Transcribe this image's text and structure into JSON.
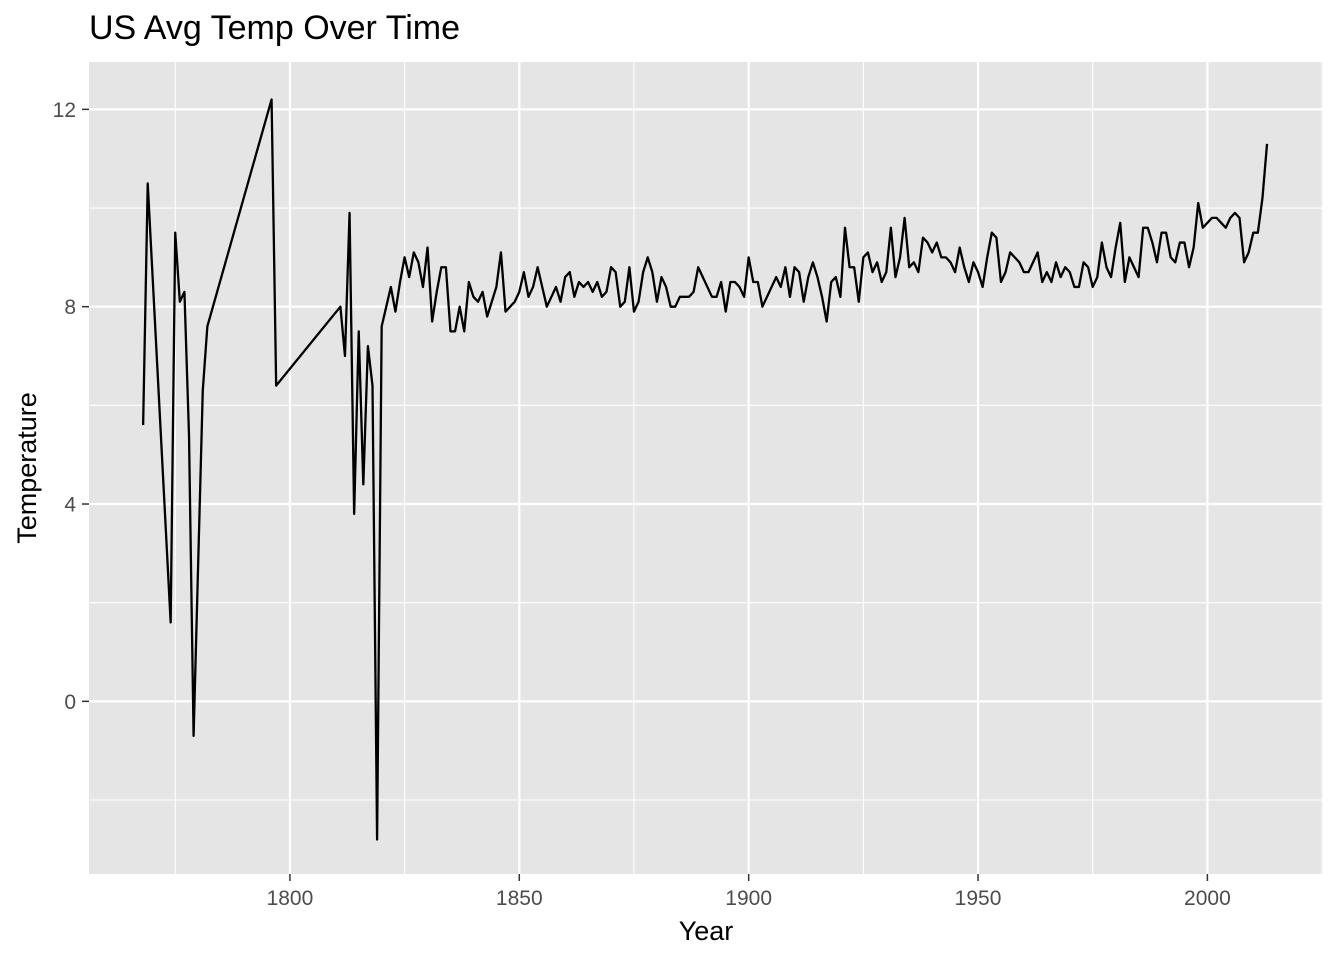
{
  "chart_data": {
    "type": "line",
    "title": "US Avg Temp Over Time",
    "xlabel": "Year",
    "ylabel": "Temperature",
    "xlim": [
      1756.2,
      2025.2
    ],
    "ylim": [
      -3.5,
      12.96
    ],
    "x_ticks": [
      1800,
      1850,
      1900,
      1950,
      2000
    ],
    "y_ticks": [
      0,
      4,
      8,
      12
    ],
    "grid": true,
    "legend": "none",
    "colors": {
      "panel": "#e5e5e5",
      "grid": "#ffffff",
      "line": "#000000",
      "tick_text": "#4d4d4d"
    },
    "series": [
      {
        "x": [
          1768,
          1769,
          1774,
          1775,
          1776,
          1777,
          1778,
          1779,
          1781,
          1782,
          1796,
          1797,
          1811,
          1812,
          1813,
          1814,
          1815,
          1816,
          1817,
          1818,
          1819,
          1820,
          1821,
          1822,
          1823,
          1824,
          1825,
          1826,
          1827,
          1828,
          1829,
          1830,
          1831,
          1832,
          1833,
          1834,
          1835,
          1836,
          1837,
          1838,
          1839,
          1840,
          1841,
          1842,
          1843,
          1844,
          1845,
          1846,
          1847,
          1848,
          1849,
          1850,
          1851,
          1852,
          1853,
          1854,
          1855,
          1856,
          1857,
          1858,
          1859,
          1860,
          1861,
          1862,
          1863,
          1864,
          1865,
          1866,
          1867,
          1868,
          1869,
          1870,
          1871,
          1872,
          1873,
          1874,
          1875,
          1876,
          1877,
          1878,
          1879,
          1880,
          1881,
          1882,
          1883,
          1884,
          1885,
          1886,
          1887,
          1888,
          1889,
          1890,
          1891,
          1892,
          1893,
          1894,
          1895,
          1896,
          1897,
          1898,
          1899,
          1900,
          1901,
          1902,
          1903,
          1904,
          1905,
          1906,
          1907,
          1908,
          1909,
          1910,
          1911,
          1912,
          1913,
          1914,
          1915,
          1916,
          1917,
          1918,
          1919,
          1920,
          1921,
          1922,
          1923,
          1924,
          1925,
          1926,
          1927,
          1928,
          1929,
          1930,
          1931,
          1932,
          1933,
          1934,
          1935,
          1936,
          1937,
          1938,
          1939,
          1940,
          1941,
          1942,
          1943,
          1944,
          1945,
          1946,
          1947,
          1948,
          1949,
          1950,
          1951,
          1952,
          1953,
          1954,
          1955,
          1956,
          1957,
          1958,
          1959,
          1960,
          1961,
          1962,
          1963,
          1964,
          1965,
          1966,
          1967,
          1968,
          1969,
          1970,
          1971,
          1972,
          1973,
          1974,
          1975,
          1976,
          1977,
          1978,
          1979,
          1980,
          1981,
          1982,
          1983,
          1984,
          1985,
          1986,
          1987,
          1988,
          1989,
          1990,
          1991,
          1992,
          1993,
          1994,
          1995,
          1996,
          1997,
          1998,
          1999,
          2000,
          2001,
          2002,
          2003,
          2004,
          2005,
          2006,
          2007,
          2008,
          2009,
          2010,
          2011,
          2012,
          2013
        ],
        "y": [
          5.6,
          10.5,
          1.6,
          9.5,
          8.1,
          8.3,
          5.4,
          -0.7,
          6.3,
          7.6,
          12.2,
          6.4,
          8.0,
          7.0,
          9.9,
          3.8,
          7.5,
          4.4,
          7.2,
          6.4,
          -2.8,
          7.6,
          8.0,
          8.4,
          7.9,
          8.5,
          9.0,
          8.6,
          9.1,
          8.9,
          8.4,
          9.2,
          7.7,
          8.3,
          8.8,
          8.8,
          7.5,
          7.5,
          8.0,
          7.5,
          8.5,
          8.2,
          8.1,
          8.3,
          7.8,
          8.1,
          8.4,
          9.1,
          7.9,
          8.0,
          8.1,
          8.3,
          8.7,
          8.2,
          8.4,
          8.8,
          8.4,
          8.0,
          8.2,
          8.4,
          8.1,
          8.6,
          8.7,
          8.2,
          8.5,
          8.4,
          8.5,
          8.3,
          8.5,
          8.2,
          8.3,
          8.8,
          8.7,
          8.0,
          8.1,
          8.8,
          7.9,
          8.1,
          8.7,
          9.0,
          8.7,
          8.1,
          8.6,
          8.4,
          8.0,
          8.0,
          8.2,
          8.2,
          8.2,
          8.3,
          8.8,
          8.6,
          8.4,
          8.2,
          8.2,
          8.5,
          7.9,
          8.5,
          8.5,
          8.4,
          8.2,
          9.0,
          8.5,
          8.5,
          8.0,
          8.2,
          8.4,
          8.6,
          8.4,
          8.8,
          8.2,
          8.8,
          8.7,
          8.1,
          8.6,
          8.9,
          8.6,
          8.2,
          7.7,
          8.5,
          8.6,
          8.2,
          9.6,
          8.8,
          8.8,
          8.1,
          9.0,
          9.1,
          8.7,
          8.9,
          8.5,
          8.7,
          9.6,
          8.6,
          9.0,
          9.8,
          8.8,
          8.9,
          8.7,
          9.4,
          9.3,
          9.1,
          9.3,
          9.0,
          9.0,
          8.9,
          8.7,
          9.2,
          8.8,
          8.5,
          8.9,
          8.7,
          8.4,
          9.0,
          9.5,
          9.4,
          8.5,
          8.7,
          9.1,
          9.0,
          8.9,
          8.7,
          8.7,
          8.9,
          9.1,
          8.5,
          8.7,
          8.5,
          8.9,
          8.6,
          8.8,
          8.7,
          8.4,
          8.4,
          8.9,
          8.8,
          8.4,
          8.6,
          9.3,
          8.8,
          8.6,
          9.2,
          9.7,
          8.5,
          9.0,
          8.8,
          8.6,
          9.6,
          9.6,
          9.3,
          8.9,
          9.5,
          9.5,
          9.0,
          8.9,
          9.3,
          9.3,
          8.8,
          9.2,
          10.1,
          9.6,
          9.7,
          9.8,
          9.8,
          9.7,
          9.6,
          9.8,
          9.9,
          9.8,
          8.9,
          9.1,
          9.5,
          9.5,
          10.2,
          11.3
        ]
      }
    ]
  }
}
